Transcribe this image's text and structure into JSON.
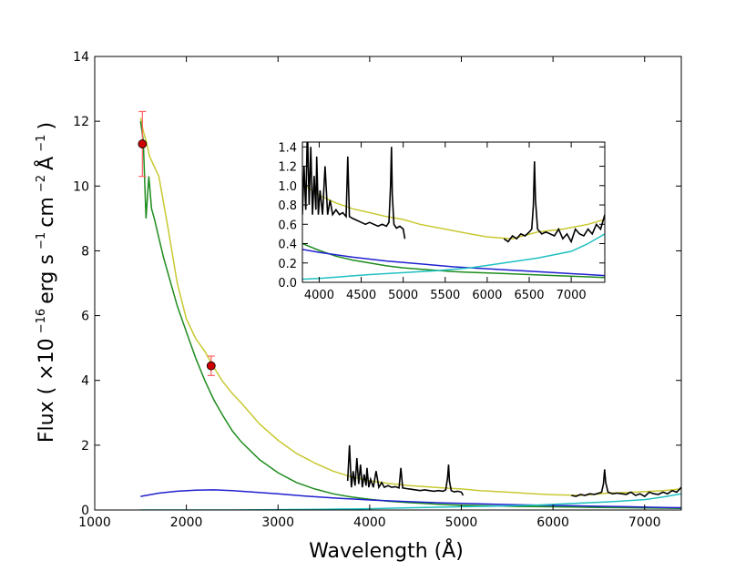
{
  "chart_data": {
    "type": "line",
    "xlabel": "Wavelength (Å)",
    "ylabel": {
      "prefix": "Flux ( ×10",
      "exp1": "−16",
      "erg": "erg s",
      "exp2": "−1",
      "cm": " cm",
      "exp3": "−2",
      "ang": " Å",
      "exp4": "−1",
      "suffix": " )"
    },
    "xlim": [
      1000,
      7400
    ],
    "ylim": [
      0,
      14
    ],
    "xticks": [
      "1000",
      "2000",
      "3000",
      "4000",
      "5000",
      "6000",
      "7000"
    ],
    "yticks": [
      "0",
      "2",
      "4",
      "6",
      "8",
      "10",
      "12",
      "14"
    ],
    "grid": false,
    "colors": {
      "observed": "#000000",
      "total_model": "#c8c832",
      "green_model": "#1e8c1e",
      "blue_model": "#2020d0",
      "cyan_model": "#20c0c0",
      "photometry": "#cc0000",
      "errorbar": "#ff6060"
    },
    "series": [
      {
        "key": "total_model",
        "x": [
          1500,
          1530,
          1560,
          1600,
          1650,
          1700,
          1800,
          1900,
          2000,
          2100,
          2200,
          2300,
          2400,
          2500,
          2600,
          2800,
          3000,
          3200,
          3400,
          3600,
          3800,
          4000,
          4200,
          4400,
          4600,
          4800,
          5000,
          5200,
          5500,
          5800,
          6000,
          6300,
          6600,
          6900,
          7200,
          7400
        ],
        "y": [
          12.1,
          11.7,
          11.4,
          10.9,
          10.6,
          10.3,
          8.7,
          7.0,
          5.9,
          5.3,
          4.9,
          4.4,
          3.95,
          3.6,
          3.3,
          2.65,
          2.15,
          1.75,
          1.45,
          1.2,
          1.02,
          0.9,
          0.82,
          0.76,
          0.72,
          0.68,
          0.65,
          0.6,
          0.55,
          0.5,
          0.47,
          0.45,
          0.52,
          0.55,
          0.6,
          0.65
        ]
      },
      {
        "key": "green_model",
        "x": [
          1500,
          1530,
          1560,
          1590,
          1620,
          1650,
          1700,
          1750,
          1800,
          1900,
          2000,
          2100,
          2200,
          2300,
          2400,
          2500,
          2600,
          2800,
          3000,
          3200,
          3400,
          3600,
          3800,
          4000,
          4200,
          4400,
          4600,
          4800,
          5000,
          5300,
          5600,
          5900,
          6200,
          6500,
          6800,
          7100,
          7400
        ],
        "y": [
          12.0,
          11.4,
          9.0,
          10.3,
          9.3,
          9.0,
          8.4,
          7.8,
          7.3,
          6.3,
          5.5,
          4.7,
          4.0,
          3.4,
          2.9,
          2.45,
          2.1,
          1.55,
          1.15,
          0.85,
          0.65,
          0.5,
          0.4,
          0.33,
          0.27,
          0.23,
          0.2,
          0.17,
          0.15,
          0.13,
          0.11,
          0.1,
          0.09,
          0.08,
          0.07,
          0.06,
          0.05
        ]
      },
      {
        "key": "blue_model",
        "x": [
          1500,
          1700,
          1900,
          2100,
          2300,
          2500,
          2700,
          3000,
          3300,
          3600,
          4000,
          4400,
          4800,
          5200,
          5600,
          6000,
          6400,
          6800,
          7200,
          7400
        ],
        "y": [
          0.42,
          0.52,
          0.58,
          0.61,
          0.62,
          0.6,
          0.56,
          0.5,
          0.43,
          0.37,
          0.31,
          0.26,
          0.22,
          0.19,
          0.16,
          0.14,
          0.12,
          0.1,
          0.08,
          0.07
        ]
      },
      {
        "key": "cyan_model",
        "x": [
          1500,
          2000,
          2500,
          3000,
          3500,
          4000,
          4300,
          4600,
          5000,
          5400,
          5800,
          6200,
          6600,
          7000,
          7200,
          7400
        ],
        "y": [
          0.0,
          0.0,
          0.0,
          0.01,
          0.02,
          0.04,
          0.06,
          0.08,
          0.1,
          0.12,
          0.15,
          0.2,
          0.25,
          0.32,
          0.4,
          0.5
        ]
      },
      {
        "key": "observed",
        "segments": [
          {
            "x": [
              3760,
              3780,
              3800,
              3820,
              3840,
              3860,
              3880,
              3900,
              3920,
              3940,
              3960,
              3970,
              3990,
              4010,
              4040,
              4070,
              4100,
              4130,
              4160,
              4200,
              4240,
              4280,
              4320,
              4340,
              4360,
              4400,
              4450,
              4500,
              4550,
              4600,
              4650,
              4700,
              4750,
              4800,
              4830,
              4850,
              4861,
              4870,
              4890,
              4920,
              4960,
              5000,
              5020
            ],
            "y": [
              0.9,
              2.0,
              0.7,
              1.2,
              0.75,
              1.6,
              0.8,
              1.4,
              0.7,
              1.1,
              0.75,
              1.3,
              0.7,
              0.95,
              0.7,
              1.2,
              0.7,
              0.85,
              0.7,
              0.75,
              0.7,
              0.72,
              0.68,
              1.3,
              0.68,
              0.66,
              0.64,
              0.62,
              0.6,
              0.62,
              0.6,
              0.58,
              0.6,
              0.58,
              0.62,
              1.0,
              1.4,
              0.9,
              0.6,
              0.56,
              0.58,
              0.55,
              0.45
            ]
          },
          {
            "x": [
              6200,
              6250,
              6300,
              6350,
              6400,
              6450,
              6500,
              6530,
              6550,
              6563,
              6575,
              6600,
              6650,
              6700,
              6750,
              6800,
              6850,
              6900,
              6950,
              7000,
              7050,
              7100,
              7150,
              7200,
              7250,
              7300,
              7350,
              7400
            ],
            "y": [
              0.45,
              0.42,
              0.48,
              0.45,
              0.5,
              0.48,
              0.52,
              0.55,
              0.8,
              1.25,
              0.85,
              0.55,
              0.5,
              0.52,
              0.5,
              0.48,
              0.55,
              0.45,
              0.5,
              0.42,
              0.55,
              0.5,
              0.48,
              0.55,
              0.5,
              0.6,
              0.55,
              0.7
            ]
          }
        ]
      }
    ],
    "photometry": [
      {
        "x": 1520,
        "y": 11.3,
        "yerr": 1.0
      },
      {
        "x": 2270,
        "y": 4.45,
        "yerr": 0.3
      }
    ],
    "inset": {
      "xlim": [
        3800,
        7400
      ],
      "ylim": [
        0,
        1.45
      ],
      "xticks": [
        "4000",
        "4500",
        "5000",
        "5500",
        "6000",
        "6500",
        "7000"
      ],
      "yticks": [
        "0.0",
        "0.2",
        "0.4",
        "0.6",
        "0.8",
        "1.0",
        "1.2",
        "1.4"
      ]
    }
  }
}
